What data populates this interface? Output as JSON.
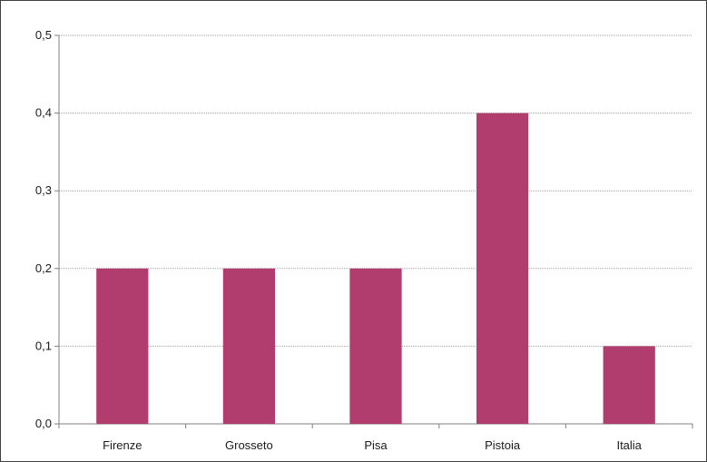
{
  "chart_data": {
    "type": "bar",
    "categories": [
      "Firenze",
      "Grosseto",
      "Pisa",
      "Pistoia",
      "Italia"
    ],
    "values": [
      0.2,
      0.2,
      0.2,
      0.4,
      0.1
    ],
    "ylim": [
      0,
      0.5
    ],
    "yticks": [
      "0,0",
      "0,1",
      "0,2",
      "0,3",
      "0,4",
      "0,5"
    ],
    "grid": true,
    "bar_color": "#b13c6e",
    "grid_color": "#a0a0a0",
    "axis_color": "#808080"
  }
}
